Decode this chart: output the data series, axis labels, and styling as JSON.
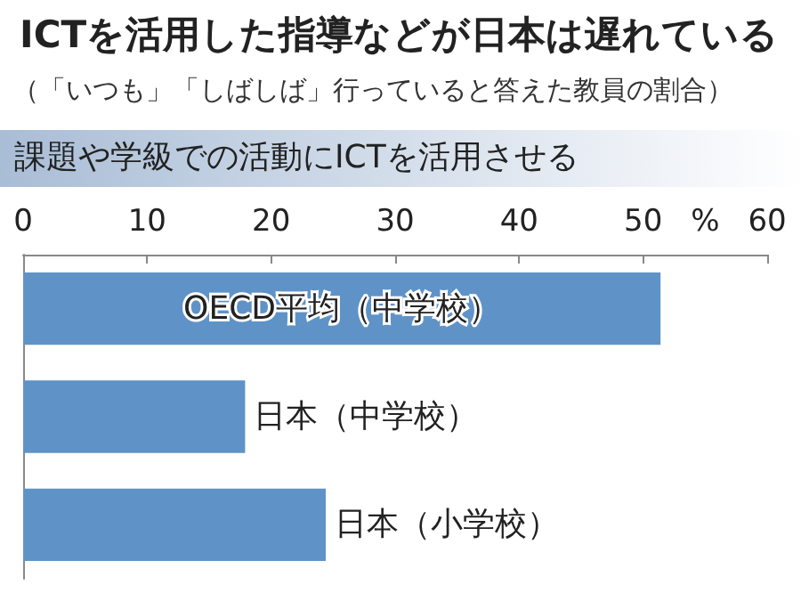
{
  "chart_data": {
    "type": "bar",
    "orientation": "horizontal",
    "title": "ICTを活用した指導などが日本は遅れている",
    "subtitle": "（「いつも」「しばしば」行っていると答えた教員の割合）",
    "annotations": [
      "課題や学級での活動にICTを活用させる"
    ],
    "xlabel": "%",
    "categories": [
      "OECD平均（中学校）",
      "日本（中学校）",
      "日本（小学校）"
    ],
    "values": [
      51.4,
      17.9,
      24.4
    ],
    "color": "#5f93c8",
    "xlim": [
      0,
      60
    ],
    "xticks": [
      0,
      10,
      20,
      30,
      40,
      50,
      60
    ],
    "grid": false
  }
}
